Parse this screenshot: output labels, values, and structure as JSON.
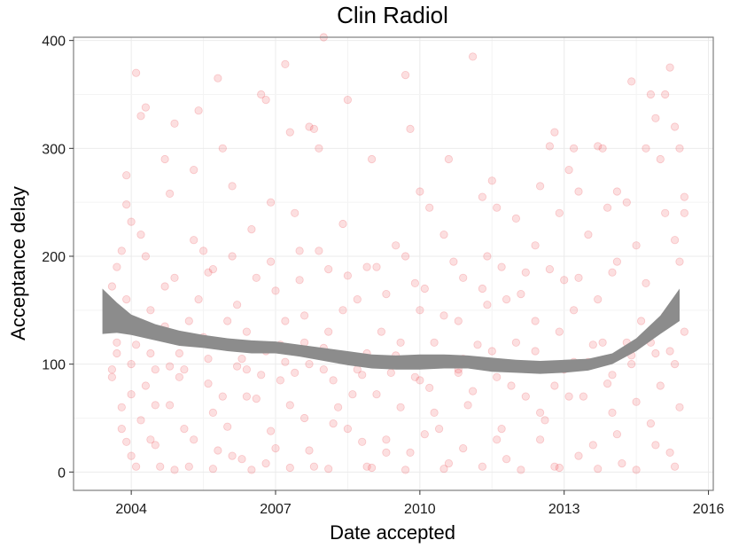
{
  "chart_data": {
    "type": "scatter",
    "title": "Clin Radiol",
    "xlabel": "Date accepted",
    "ylabel": "Acceptance delay",
    "xlim": [
      2002.8,
      2016.1
    ],
    "ylim": [
      -17,
      403
    ],
    "x_ticks": [
      2004,
      2007,
      2010,
      2013,
      2016
    ],
    "y_ticks": [
      0,
      100,
      200,
      300,
      400
    ],
    "grid": true,
    "point_color": "#e8282d",
    "point_opacity": 0.15,
    "smooth_band_color": "#8c8c8c",
    "smooth_band": [
      {
        "x": 2003.4,
        "lower": 128,
        "upper": 170
      },
      {
        "x": 2003.7,
        "lower": 129,
        "upper": 157
      },
      {
        "x": 2004.0,
        "lower": 127,
        "upper": 146
      },
      {
        "x": 2004.5,
        "lower": 122,
        "upper": 137
      },
      {
        "x": 2005.0,
        "lower": 117,
        "upper": 131
      },
      {
        "x": 2005.5,
        "lower": 115,
        "upper": 127
      },
      {
        "x": 2006.0,
        "lower": 112,
        "upper": 124
      },
      {
        "x": 2006.5,
        "lower": 110,
        "upper": 122
      },
      {
        "x": 2007.0,
        "lower": 110,
        "upper": 121
      },
      {
        "x": 2007.5,
        "lower": 107,
        "upper": 118
      },
      {
        "x": 2008.0,
        "lower": 103,
        "upper": 115
      },
      {
        "x": 2008.5,
        "lower": 99,
        "upper": 112
      },
      {
        "x": 2009.0,
        "lower": 96,
        "upper": 109
      },
      {
        "x": 2009.5,
        "lower": 95,
        "upper": 108
      },
      {
        "x": 2010.0,
        "lower": 95,
        "upper": 109
      },
      {
        "x": 2010.5,
        "lower": 96,
        "upper": 109
      },
      {
        "x": 2011.0,
        "lower": 96,
        "upper": 108
      },
      {
        "x": 2011.5,
        "lower": 93,
        "upper": 106
      },
      {
        "x": 2012.0,
        "lower": 92,
        "upper": 104
      },
      {
        "x": 2012.5,
        "lower": 91,
        "upper": 103
      },
      {
        "x": 2013.0,
        "lower": 92,
        "upper": 104
      },
      {
        "x": 2013.5,
        "lower": 94,
        "upper": 105
      },
      {
        "x": 2014.0,
        "lower": 100,
        "upper": 110
      },
      {
        "x": 2014.5,
        "lower": 112,
        "upper": 124
      },
      {
        "x": 2015.0,
        "lower": 128,
        "upper": 145
      },
      {
        "x": 2015.4,
        "lower": 140,
        "upper": 170
      }
    ],
    "points": [
      [
        2003.5,
        135
      ],
      [
        2003.6,
        172
      ],
      [
        2003.7,
        190
      ],
      [
        2003.8,
        205
      ],
      [
        2003.9,
        248
      ],
      [
        2003.6,
        95
      ],
      [
        2003.8,
        60
      ],
      [
        2003.9,
        28
      ],
      [
        2004.0,
        15
      ],
      [
        2004.1,
        370
      ],
      [
        2004.2,
        330
      ],
      [
        2004.3,
        338
      ],
      [
        2003.9,
        275
      ],
      [
        2004.0,
        232
      ],
      [
        2004.2,
        220
      ],
      [
        2004.4,
        150
      ],
      [
        2004.3,
        80
      ],
      [
        2004.5,
        95
      ],
      [
        2004.6,
        125
      ],
      [
        2004.7,
        172
      ],
      [
        2004.8,
        258
      ],
      [
        2004.9,
        323
      ],
      [
        2004.7,
        290
      ],
      [
        2005.0,
        88
      ],
      [
        2005.1,
        40
      ],
      [
        2005.2,
        5
      ],
      [
        2005.3,
        280
      ],
      [
        2005.4,
        335
      ],
      [
        2005.5,
        205
      ],
      [
        2005.6,
        185
      ],
      [
        2005.7,
        55
      ],
      [
        2005.8,
        365
      ],
      [
        2005.9,
        300
      ],
      [
        2006.0,
        140
      ],
      [
        2006.1,
        265
      ],
      [
        2006.2,
        98
      ],
      [
        2006.3,
        12
      ],
      [
        2006.4,
        70
      ],
      [
        2006.5,
        115
      ],
      [
        2006.6,
        180
      ],
      [
        2006.7,
        350
      ],
      [
        2006.8,
        345
      ],
      [
        2006.9,
        250
      ],
      [
        2007.0,
        168
      ],
      [
        2007.1,
        85
      ],
      [
        2007.2,
        378
      ],
      [
        2007.3,
        315
      ],
      [
        2007.4,
        240
      ],
      [
        2007.5,
        205
      ],
      [
        2007.6,
        145
      ],
      [
        2007.7,
        320
      ],
      [
        2007.8,
        318
      ],
      [
        2007.9,
        300
      ],
      [
        2008.0,
        403
      ],
      [
        2008.1,
        188
      ],
      [
        2008.2,
        45
      ],
      [
        2008.4,
        230
      ],
      [
        2008.5,
        345
      ],
      [
        2008.7,
        160
      ],
      [
        2008.9,
        110
      ],
      [
        2009.0,
        290
      ],
      [
        2009.1,
        190
      ],
      [
        2009.3,
        30
      ],
      [
        2009.5,
        210
      ],
      [
        2009.7,
        368
      ],
      [
        2009.8,
        318
      ],
      [
        2009.9,
        175
      ],
      [
        2010.0,
        260
      ],
      [
        2010.2,
        245
      ],
      [
        2010.3,
        120
      ],
      [
        2010.5,
        220
      ],
      [
        2010.6,
        290
      ],
      [
        2010.8,
        95
      ],
      [
        2010.9,
        180
      ],
      [
        2011.1,
        385
      ],
      [
        2011.3,
        255
      ],
      [
        2011.4,
        200
      ],
      [
        2011.5,
        270
      ],
      [
        2011.6,
        245
      ],
      [
        2011.8,
        160
      ],
      [
        2012.0,
        235
      ],
      [
        2012.2,
        185
      ],
      [
        2012.4,
        210
      ],
      [
        2012.5,
        265
      ],
      [
        2012.7,
        302
      ],
      [
        2012.8,
        315
      ],
      [
        2012.9,
        240
      ],
      [
        2013.0,
        178
      ],
      [
        2013.1,
        280
      ],
      [
        2013.2,
        300
      ],
      [
        2013.3,
        260
      ],
      [
        2013.5,
        220
      ],
      [
        2013.7,
        302
      ],
      [
        2013.8,
        300
      ],
      [
        2013.9,
        245
      ],
      [
        2014.0,
        185
      ],
      [
        2014.1,
        260
      ],
      [
        2014.3,
        250
      ],
      [
        2014.4,
        362
      ],
      [
        2014.5,
        210
      ],
      [
        2014.7,
        300
      ],
      [
        2014.8,
        350
      ],
      [
        2014.9,
        328
      ],
      [
        2015.0,
        290
      ],
      [
        2015.1,
        350
      ],
      [
        2015.2,
        375
      ],
      [
        2015.3,
        320
      ],
      [
        2015.4,
        300
      ],
      [
        2015.5,
        255
      ],
      [
        2015.1,
        240
      ],
      [
        2015.3,
        215
      ],
      [
        2015.4,
        195
      ],
      [
        2015.5,
        240
      ],
      [
        2003.5,
        150
      ],
      [
        2003.7,
        110
      ],
      [
        2004.0,
        72
      ],
      [
        2004.2,
        48
      ],
      [
        2004.4,
        30
      ],
      [
        2004.6,
        5
      ],
      [
        2004.8,
        62
      ],
      [
        2005.0,
        110
      ],
      [
        2005.2,
        140
      ],
      [
        2005.4,
        160
      ],
      [
        2005.6,
        82
      ],
      [
        2005.8,
        20
      ],
      [
        2006.0,
        42
      ],
      [
        2006.2,
        155
      ],
      [
        2006.4,
        130
      ],
      [
        2006.6,
        68
      ],
      [
        2006.8,
        8
      ],
      [
        2007.0,
        22
      ],
      [
        2007.2,
        140
      ],
      [
        2007.4,
        92
      ],
      [
        2007.6,
        50
      ],
      [
        2007.8,
        5
      ],
      [
        2008.0,
        115
      ],
      [
        2008.2,
        85
      ],
      [
        2008.4,
        150
      ],
      [
        2008.6,
        72
      ],
      [
        2008.8,
        28
      ],
      [
        2009.0,
        4
      ],
      [
        2009.2,
        130
      ],
      [
        2009.4,
        92
      ],
      [
        2009.6,
        60
      ],
      [
        2009.8,
        18
      ],
      [
        2010.0,
        150
      ],
      [
        2010.2,
        78
      ],
      [
        2010.4,
        40
      ],
      [
        2010.6,
        8
      ],
      [
        2010.8,
        140
      ],
      [
        2011.0,
        62
      ],
      [
        2011.2,
        100
      ],
      [
        2011.4,
        155
      ],
      [
        2011.6,
        30
      ],
      [
        2011.8,
        12
      ],
      [
        2012.0,
        120
      ],
      [
        2012.2,
        70
      ],
      [
        2012.4,
        140
      ],
      [
        2012.6,
        48
      ],
      [
        2012.8,
        5
      ],
      [
        2013.0,
        95
      ],
      [
        2013.2,
        150
      ],
      [
        2013.4,
        70
      ],
      [
        2013.6,
        25
      ],
      [
        2013.8,
        120
      ],
      [
        2014.0,
        55
      ],
      [
        2014.2,
        8
      ],
      [
        2014.4,
        100
      ],
      [
        2014.6,
        140
      ],
      [
        2014.8,
        45
      ],
      [
        2015.0,
        80
      ],
      [
        2015.2,
        18
      ],
      [
        2015.4,
        60
      ],
      [
        2003.6,
        88
      ],
      [
        2003.9,
        160
      ],
      [
        2004.1,
        118
      ],
      [
        2004.3,
        200
      ],
      [
        2004.5,
        62
      ],
      [
        2004.7,
        135
      ],
      [
        2004.9,
        180
      ],
      [
        2005.1,
        95
      ],
      [
        2005.3,
        215
      ],
      [
        2005.5,
        125
      ],
      [
        2005.7,
        188
      ],
      [
        2005.9,
        70
      ],
      [
        2006.1,
        200
      ],
      [
        2006.3,
        105
      ],
      [
        2006.5,
        225
      ],
      [
        2006.7,
        90
      ],
      [
        2006.9,
        195
      ],
      [
        2007.1,
        118
      ],
      [
        2007.3,
        62
      ],
      [
        2007.5,
        178
      ],
      [
        2007.7,
        100
      ],
      [
        2007.9,
        205
      ],
      [
        2008.1,
        130
      ],
      [
        2008.3,
        60
      ],
      [
        2008.5,
        182
      ],
      [
        2008.7,
        95
      ],
      [
        2008.9,
        190
      ],
      [
        2009.1,
        72
      ],
      [
        2009.3,
        165
      ],
      [
        2009.5,
        108
      ],
      [
        2009.7,
        200
      ],
      [
        2009.9,
        88
      ],
      [
        2010.1,
        170
      ],
      [
        2010.3,
        55
      ],
      [
        2010.5,
        145
      ],
      [
        2010.7,
        195
      ],
      [
        2010.9,
        105
      ],
      [
        2011.1,
        75
      ],
      [
        2011.3,
        170
      ],
      [
        2011.5,
        112
      ],
      [
        2011.7,
        190
      ],
      [
        2011.9,
        80
      ],
      [
        2012.1,
        165
      ],
      [
        2012.3,
        98
      ],
      [
        2012.5,
        55
      ],
      [
        2012.7,
        188
      ],
      [
        2012.9,
        130
      ],
      [
        2013.1,
        70
      ],
      [
        2013.3,
        180
      ],
      [
        2013.5,
        102
      ],
      [
        2013.7,
        160
      ],
      [
        2013.9,
        82
      ],
      [
        2014.1,
        195
      ],
      [
        2014.3,
        120
      ],
      [
        2014.5,
        65
      ],
      [
        2014.7,
        175
      ],
      [
        2014.9,
        110
      ],
      [
        2015.1,
        145
      ],
      [
        2015.3,
        100
      ],
      [
        2015.5,
        130
      ],
      [
        2003.7,
        120
      ],
      [
        2004.0,
        100
      ],
      [
        2004.4,
        110
      ],
      [
        2004.8,
        98
      ],
      [
        2005.2,
        120
      ],
      [
        2005.6,
        105
      ],
      [
        2006.0,
        118
      ],
      [
        2006.4,
        95
      ],
      [
        2006.8,
        112
      ],
      [
        2007.2,
        102
      ],
      [
        2007.6,
        120
      ],
      [
        2008.0,
        95
      ],
      [
        2008.4,
        108
      ],
      [
        2008.8,
        90
      ],
      [
        2009.2,
        102
      ],
      [
        2009.6,
        120
      ],
      [
        2010.0,
        85
      ],
      [
        2010.4,
        105
      ],
      [
        2010.8,
        92
      ],
      [
        2011.2,
        118
      ],
      [
        2011.6,
        88
      ],
      [
        2012.0,
        100
      ],
      [
        2012.4,
        112
      ],
      [
        2012.8,
        80
      ],
      [
        2013.2,
        102
      ],
      [
        2013.6,
        118
      ],
      [
        2014.0,
        90
      ],
      [
        2014.4,
        108
      ],
      [
        2014.8,
        120
      ],
      [
        2015.2,
        112
      ],
      [
        2003.8,
        40
      ],
      [
        2004.1,
        5
      ],
      [
        2004.5,
        25
      ],
      [
        2004.9,
        2
      ],
      [
        2005.3,
        30
      ],
      [
        2005.7,
        3
      ],
      [
        2006.1,
        15
      ],
      [
        2006.5,
        2
      ],
      [
        2006.9,
        38
      ],
      [
        2007.3,
        4
      ],
      [
        2007.7,
        20
      ],
      [
        2008.1,
        3
      ],
      [
        2008.5,
        40
      ],
      [
        2008.9,
        5
      ],
      [
        2009.3,
        18
      ],
      [
        2009.7,
        2
      ],
      [
        2010.1,
        35
      ],
      [
        2010.5,
        3
      ],
      [
        2010.9,
        22
      ],
      [
        2011.3,
        5
      ],
      [
        2011.7,
        40
      ],
      [
        2012.1,
        2
      ],
      [
        2012.5,
        30
      ],
      [
        2012.9,
        4
      ],
      [
        2013.3,
        15
      ],
      [
        2013.7,
        3
      ],
      [
        2014.1,
        35
      ],
      [
        2014.5,
        2
      ],
      [
        2014.9,
        25
      ],
      [
        2015.3,
        5
      ]
    ]
  }
}
